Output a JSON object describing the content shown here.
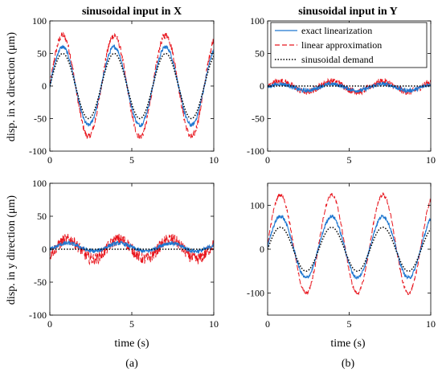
{
  "figure": {
    "column_titles": [
      "sinusoidal input in X",
      "sinusoidal input in Y"
    ],
    "row_ylabels": [
      "disp. in x direction (μm)",
      "disp. in y direction (μm)"
    ],
    "xlabel": "time (s)",
    "panel_tags": [
      "(a)",
      "(b)"
    ]
  },
  "legend": {
    "placement": "top-right of top-right panel",
    "entries": [
      {
        "label": "exact linearization",
        "color": "#1f77d0",
        "style": "solid"
      },
      {
        "label": "linear approximation",
        "color": "#e8161e",
        "style": "dashed"
      },
      {
        "label": "sinusoidal demand",
        "color": "#000000",
        "style": "dotted"
      }
    ]
  },
  "colors": {
    "exact": "#1f77d0",
    "approx": "#e8161e",
    "demand": "#000000"
  },
  "chart_data": [
    {
      "type": "line",
      "title": "sinusoidal input in X",
      "xlabel": "",
      "ylabel": "disp. in x direction (μm)",
      "xlim": [
        0,
        10
      ],
      "ylim": [
        -100,
        100
      ],
      "xticks": [
        0,
        5,
        10
      ],
      "yticks": [
        -100,
        -50,
        0,
        50,
        100
      ],
      "signal": {
        "kind": "sine",
        "period_s": 3.14,
        "phase_s": 0
      },
      "series": [
        {
          "name": "exact linearization",
          "amplitude": 60,
          "offset": 0,
          "noise": 3
        },
        {
          "name": "linear approximation",
          "amplitude": 78,
          "offset": 0,
          "noise": 5
        },
        {
          "name": "sinusoidal demand",
          "amplitude": 50,
          "offset": 0,
          "noise": 0
        }
      ]
    },
    {
      "type": "line",
      "title": "sinusoidal input in Y",
      "xlabel": "",
      "ylabel": "",
      "xlim": [
        0,
        10
      ],
      "ylim": [
        -100,
        100
      ],
      "xticks": [
        0,
        5,
        10
      ],
      "yticks": [
        -100,
        -50,
        0,
        50,
        100
      ],
      "signal": {
        "kind": "sine",
        "period_s": 3.14,
        "phase_s": 0
      },
      "series": [
        {
          "name": "exact linearization",
          "amplitude": 5,
          "offset": -2,
          "noise": 3
        },
        {
          "name": "linear approximation",
          "amplitude": 8,
          "offset": -1,
          "noise": 5
        },
        {
          "name": "sinusoidal demand",
          "amplitude": 0,
          "offset": 0,
          "noise": 0
        }
      ]
    },
    {
      "type": "line",
      "title": "",
      "xlabel": "time (s)",
      "ylabel": "disp. in y direction (μm)",
      "xlim": [
        0,
        10
      ],
      "ylim": [
        -100,
        100
      ],
      "xticks": [
        0,
        5,
        10
      ],
      "yticks": [
        -100,
        -50,
        0,
        50,
        100
      ],
      "signal": {
        "kind": "sine",
        "period_s": 3.14,
        "phase_s": 0.3
      },
      "series": [
        {
          "name": "exact linearization",
          "amplitude": 6,
          "offset": 3,
          "noise": 3
        },
        {
          "name": "linear approximation",
          "amplitude": 15,
          "offset": 0,
          "noise": 9
        },
        {
          "name": "sinusoidal demand",
          "amplitude": 0,
          "offset": 0,
          "noise": 0
        }
      ]
    },
    {
      "type": "line",
      "title": "",
      "xlabel": "time (s)",
      "ylabel": "",
      "xlim": [
        0,
        10
      ],
      "ylim": [
        -150,
        150
      ],
      "xticks": [
        0,
        5,
        10
      ],
      "yticks": [
        -100,
        0,
        100
      ],
      "signal": {
        "kind": "sine",
        "period_s": 3.14,
        "phase_s": 0
      },
      "series": [
        {
          "name": "exact linearization",
          "amplitude": 70,
          "offset": 5,
          "noise": 4
        },
        {
          "name": "linear approximation",
          "amplitude": 112,
          "offset": 12,
          "noise": 4
        },
        {
          "name": "sinusoidal demand",
          "amplitude": 50,
          "offset": 0,
          "noise": 0
        }
      ]
    }
  ]
}
